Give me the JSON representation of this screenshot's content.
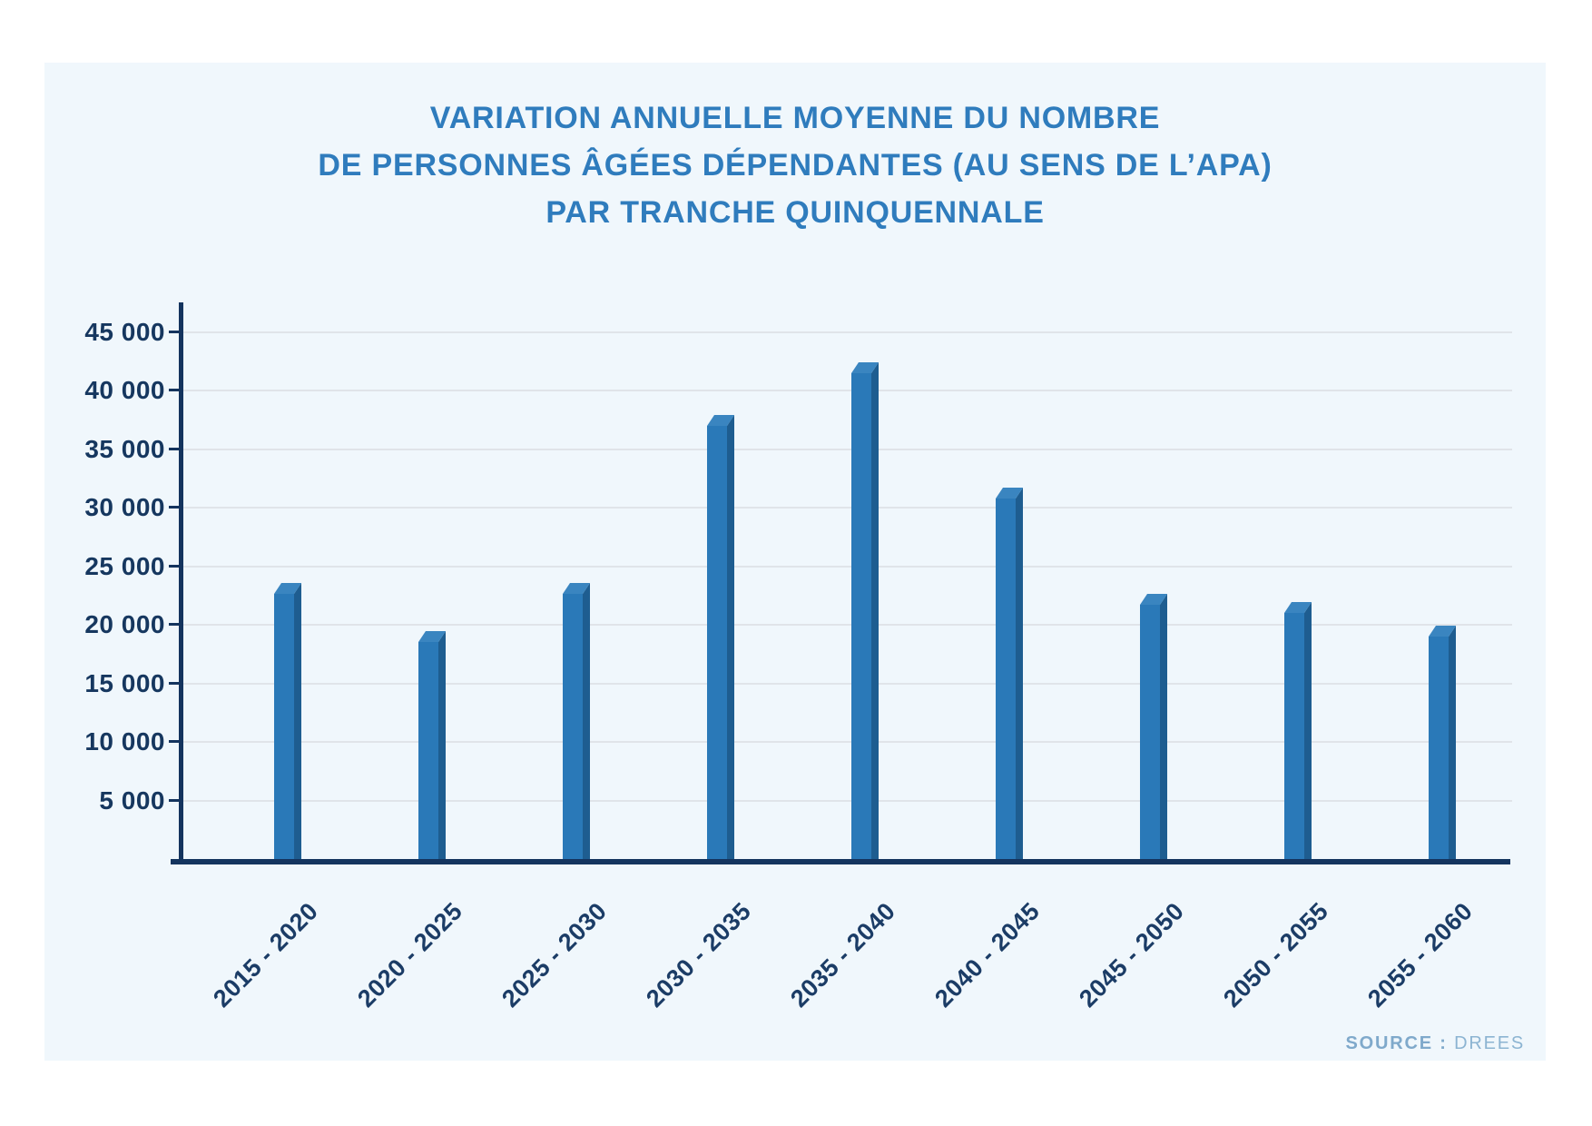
{
  "title": {
    "lines": [
      "VARIATION ANNUELLE MOYENNE DU NOMBRE",
      "DE PERSONNES ÂGÉES DÉPENDANTES (AU SENS DE L’APA)",
      "PAR TRANCHE QUINQUENNALE"
    ],
    "color": "#2f7cbd"
  },
  "chart_data": {
    "type": "bar",
    "title": "Variation annuelle moyenne du nombre de personnes âgées dépendantes (au sens de l’APA) par tranche quinquennale",
    "categories": [
      "2015 - 2020",
      "2020 - 2025",
      "2025 - 2030",
      "2030 - 2035",
      "2035 - 2040",
      "2040 - 2045",
      "2045 - 2050",
      "2050 - 2055",
      "2055 - 2060"
    ],
    "values": [
      22600,
      18500,
      22600,
      37000,
      41500,
      30800,
      21700,
      21000,
      19000
    ],
    "xlabel": "",
    "ylabel": "",
    "ylim": [
      0,
      45000
    ],
    "ytick_interval": 5000,
    "ytick_labels": [
      "5 000",
      "10 000",
      "15 000",
      "20 000",
      "25 000",
      "30 000",
      "35 000",
      "40 000",
      "45 000"
    ],
    "grid": true,
    "legend_position": "none",
    "bar_colors": {
      "front": "#2a79b8",
      "side": "#1e5d90",
      "top": "#3a85c0"
    },
    "axis_color": "#14345e",
    "gridline_color": "#e0e4e9",
    "tick_label_color": "#16375f"
  },
  "source": {
    "label": "SOURCE :",
    "value": "DREES",
    "color": "#7fa9cb"
  },
  "page": {
    "background": "#ffffff",
    "card_background": "#f0f7fc"
  }
}
